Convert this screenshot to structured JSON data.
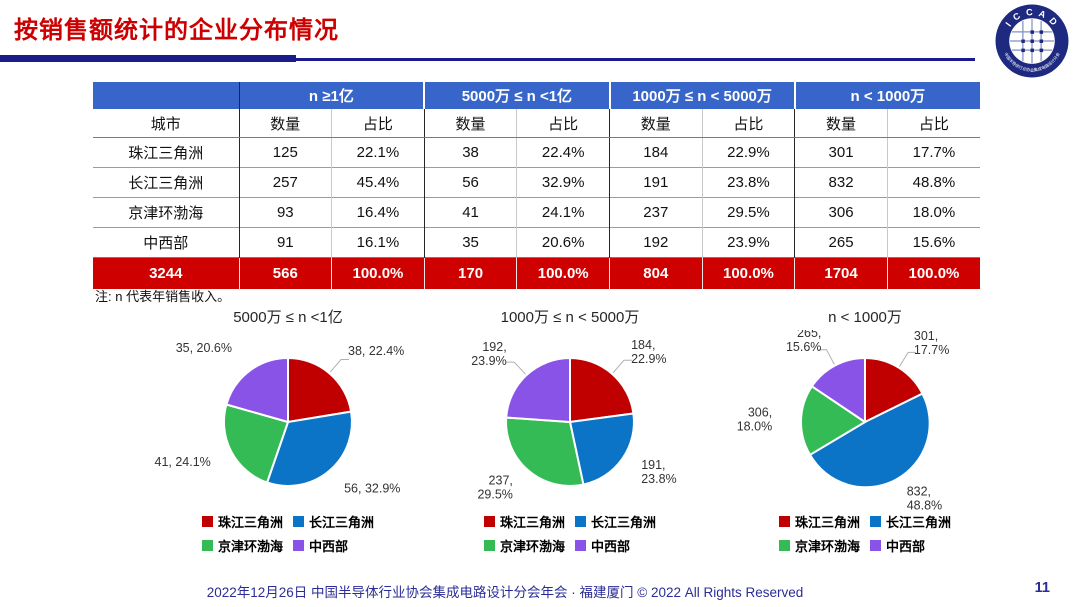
{
  "title": "按销售额统计的企业分布情况",
  "logo": {
    "top_text": "I C C A D",
    "bottom_text": "中国半导体行业协会集成电路设计分会"
  },
  "table": {
    "city_header": "城市",
    "count_header": "数量",
    "share_header": "占比",
    "col_groups": [
      "n ≥1亿",
      "5000万 ≤ n <1亿",
      "1000万 ≤ n < 5000万",
      "n < 1000万"
    ],
    "rows": [
      {
        "city": "珠江三角洲",
        "cells": [
          "125",
          "22.1%",
          "38",
          "22.4%",
          "184",
          "22.9%",
          "301",
          "17.7%"
        ]
      },
      {
        "city": "长江三角洲",
        "cells": [
          "257",
          "45.4%",
          "56",
          "32.9%",
          "191",
          "23.8%",
          "832",
          "48.8%"
        ]
      },
      {
        "city": "京津环渤海",
        "cells": [
          "93",
          "16.4%",
          "41",
          "24.1%",
          "237",
          "29.5%",
          "306",
          "18.0%"
        ]
      },
      {
        "city": "中西部",
        "cells": [
          "91",
          "16.1%",
          "35",
          "20.6%",
          "192",
          "23.9%",
          "265",
          "15.6%"
        ]
      }
    ],
    "total_row": {
      "city": "3244",
      "cells": [
        "566",
        "100.0%",
        "170",
        "100.0%",
        "804",
        "100.0%",
        "1704",
        "100.0%"
      ]
    }
  },
  "note": "注: n 代表年销售收入。",
  "colors": {
    "red": "#C00000",
    "blue": "#0C74C6",
    "green": "#35BB56",
    "purple": "#8A53E8",
    "header_blue": "#3765C9",
    "total_red": "#CF0000",
    "navy": "#1B1B8C"
  },
  "chart_data": [
    {
      "type": "pie",
      "title": "5000万 ≤ n <1亿",
      "categories": [
        "珠江三角洲",
        "长江三角洲",
        "京津环渤海",
        "中西部"
      ],
      "values": [
        38,
        56,
        41,
        35
      ],
      "percents": [
        22.4,
        32.9,
        24.1,
        20.6
      ],
      "labels": [
        [
          "38, 22.4%"
        ],
        [
          "56, 32.9%"
        ],
        [
          "41, 24.1%"
        ],
        [
          "35, 20.6%"
        ]
      ],
      "leaders": [
        true,
        false,
        false,
        false
      ],
      "colors": [
        "#C00000",
        "#0C74C6",
        "#35BB56",
        "#8A53E8"
      ],
      "legend_position": "bottom"
    },
    {
      "type": "pie",
      "title": "1000万 ≤ n < 5000万",
      "categories": [
        "珠江三角洲",
        "长江三角洲",
        "京津环渤海",
        "中西部"
      ],
      "values": [
        184,
        191,
        237,
        192
      ],
      "percents": [
        22.9,
        23.8,
        29.5,
        23.9
      ],
      "labels": [
        [
          "184,",
          "22.9%"
        ],
        [
          "191,",
          "23.8%"
        ],
        [
          "237,",
          "29.5%"
        ],
        [
          "192,",
          "23.9%"
        ]
      ],
      "leaders": [
        true,
        false,
        false,
        true
      ],
      "colors": [
        "#C00000",
        "#0C74C6",
        "#35BB56",
        "#8A53E8"
      ],
      "legend_position": "bottom"
    },
    {
      "type": "pie",
      "title": "n < 1000万",
      "categories": [
        "珠江三角洲",
        "长江三角洲",
        "京津环渤海",
        "中西部"
      ],
      "values": [
        301,
        832,
        306,
        265
      ],
      "percents": [
        17.7,
        48.8,
        18.0,
        15.6
      ],
      "labels": [
        [
          "301,",
          "17.7%"
        ],
        [
          "832,",
          "48.8%"
        ],
        [
          "306,",
          "18.0%"
        ],
        [
          "265,",
          "15.6%"
        ]
      ],
      "leaders": [
        true,
        false,
        false,
        true
      ],
      "colors": [
        "#C00000",
        "#0C74C6",
        "#35BB56",
        "#8A53E8"
      ],
      "legend_position": "bottom"
    }
  ],
  "legend": {
    "items": [
      {
        "label": "珠江三角洲",
        "color": "#C00000"
      },
      {
        "label": "长江三角洲",
        "color": "#0C74C6"
      },
      {
        "label": "京津环渤海",
        "color": "#35BB56"
      },
      {
        "label": "中西部",
        "color": "#8A53E8"
      }
    ]
  },
  "footer": {
    "text": "2022年12月26日 中国半导体行业协会集成电路设计分会年会 · 福建厦门 © 2022 All Rights Reserved",
    "page": "11"
  }
}
